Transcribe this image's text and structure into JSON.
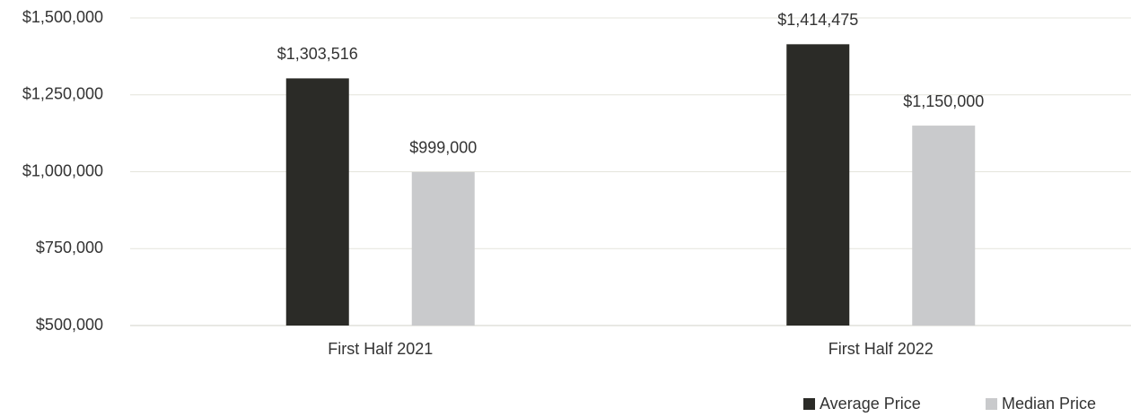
{
  "chart_data": {
    "type": "bar",
    "categories": [
      "First Half 2021",
      "First Half 2022"
    ],
    "series": [
      {
        "name": "Average Price",
        "color": "#2b2b27",
        "values": [
          1303516,
          1414475
        ],
        "value_labels": [
          "$1,303,516",
          "$1,414,475"
        ]
      },
      {
        "name": "Median Price",
        "color": "#c9cacc",
        "values": [
          999000,
          1150000
        ],
        "value_labels": [
          "$999,000",
          "$1,150,000"
        ]
      }
    ],
    "ylim": [
      500000,
      1500000
    ],
    "yticks": [
      {
        "value": 500000,
        "label": "$500,000"
      },
      {
        "value": 750000,
        "label": "$750,000"
      },
      {
        "value": 1000000,
        "label": "$1,000,000"
      },
      {
        "value": 1250000,
        "label": "$1,250,000"
      },
      {
        "value": 1500000,
        "label": "$1,500,000"
      }
    ],
    "grid": true,
    "legend": "bottom-right"
  }
}
